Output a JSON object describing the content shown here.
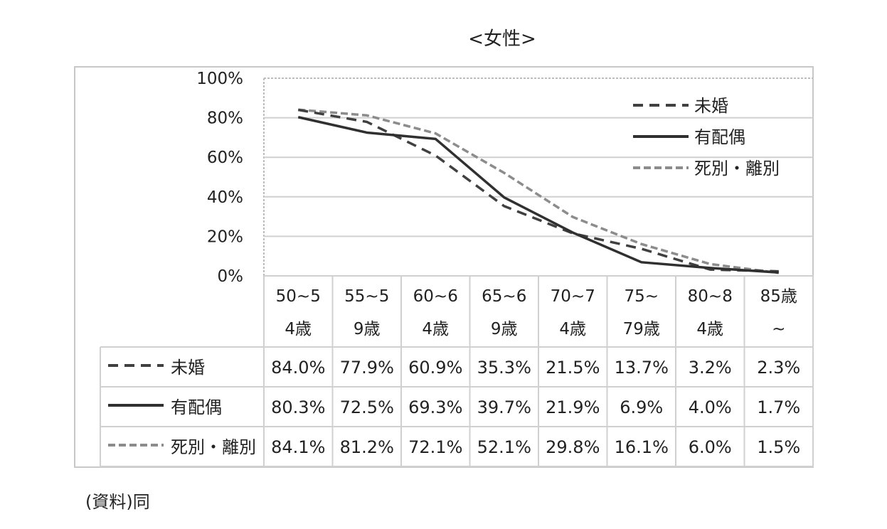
{
  "title": "<女性>",
  "source_note": "(資料)同",
  "chart_data": {
    "type": "line",
    "title": "<女性>",
    "ylim": [
      0,
      100
    ],
    "y_ticks": [
      "0%",
      "20%",
      "40%",
      "60%",
      "80%",
      "100%"
    ],
    "categories": [
      [
        "50~5",
        "4歳"
      ],
      [
        "55~5",
        "9歳"
      ],
      [
        "60~6",
        "4歳"
      ],
      [
        "65~6",
        "9歳"
      ],
      [
        "70~7",
        "4歳"
      ],
      [
        "75~",
        "79歳"
      ],
      [
        "80~8",
        "4歳"
      ],
      [
        "85歳",
        "~"
      ]
    ],
    "grid": true,
    "legend_position": "top-right",
    "series": [
      {
        "name": "未婚",
        "values": [
          84.0,
          77.9,
          60.9,
          35.3,
          21.5,
          13.7,
          3.2,
          2.3
        ],
        "labels": [
          "84.0%",
          "77.9%",
          "60.9%",
          "35.3%",
          "21.5%",
          "13.7%",
          "3.2%",
          "2.3%"
        ],
        "color": "#404040",
        "style": "dashed"
      },
      {
        "name": "有配偶",
        "values": [
          80.3,
          72.5,
          69.3,
          39.7,
          21.9,
          6.9,
          4.0,
          1.7
        ],
        "labels": [
          "80.3%",
          "72.5%",
          "69.3%",
          "39.7%",
          "21.9%",
          "6.9%",
          "4.0%",
          "1.7%"
        ],
        "color": "#303030",
        "style": "solid"
      },
      {
        "name": "死別・離別",
        "values": [
          84.1,
          81.2,
          72.1,
          52.1,
          29.8,
          16.1,
          6.0,
          1.5
        ],
        "labels": [
          "84.1%",
          "81.2%",
          "72.1%",
          "52.1%",
          "29.8%",
          "16.1%",
          "6.0%",
          "1.5%"
        ],
        "color": "#8c8c8c",
        "style": "dotted-dash"
      }
    ]
  }
}
